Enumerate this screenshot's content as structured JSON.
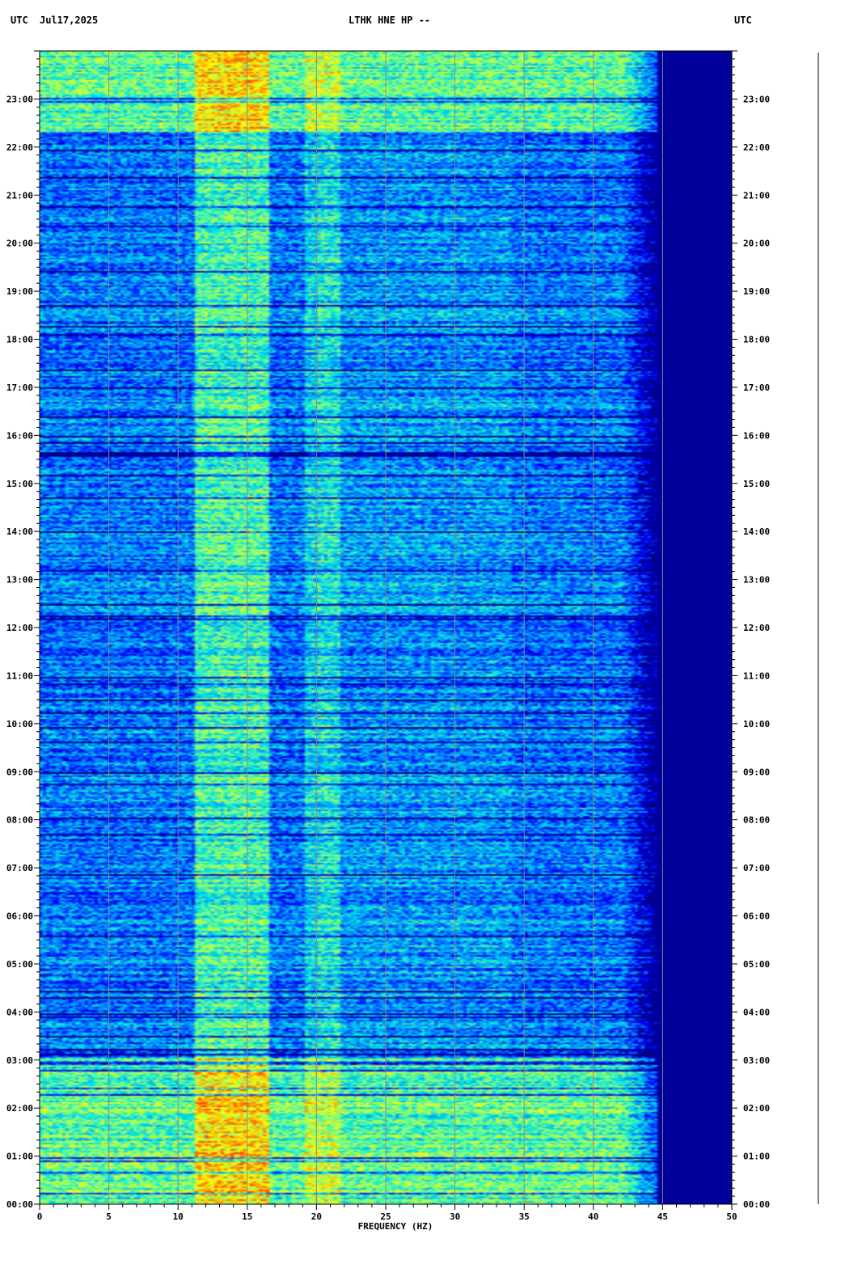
{
  "header": {
    "left_tz": "UTC",
    "date": "Jul17,2025",
    "station": "LTHK HNE HP --",
    "right_tz": "UTC"
  },
  "chart_data": {
    "type": "heatmap",
    "title": "LTHK HNE HP --",
    "date": "Jul17,2025",
    "xlabel": "FREQUENCY (HZ)",
    "ylabel_left": "UTC",
    "ylabel_right": "UTC",
    "xlim": [
      0,
      50
    ],
    "x_ticks": [
      0,
      5,
      10,
      15,
      20,
      25,
      30,
      35,
      40,
      45,
      50
    ],
    "x_tick_labels": [
      "0",
      "5",
      "10",
      "15",
      "20",
      "25",
      "30",
      "35",
      "40",
      "45",
      "50"
    ],
    "ylim_hours": [
      0,
      24
    ],
    "y_ticks": [
      "00:00",
      "01:00",
      "02:00",
      "03:00",
      "04:00",
      "05:00",
      "06:00",
      "07:00",
      "08:00",
      "09:00",
      "10:00",
      "11:00",
      "12:00",
      "13:00",
      "14:00",
      "15:00",
      "16:00",
      "17:00",
      "18:00",
      "19:00",
      "20:00",
      "21:00",
      "22:00",
      "23:00"
    ],
    "colormap": [
      "#00008b",
      "#0000ff",
      "#0080ff",
      "#00e5e5",
      "#80ff80",
      "#ffff00",
      "#ff8000",
      "#ff0000"
    ],
    "energy_bands": [
      {
        "from_hz": 11,
        "to_hz": 16.5,
        "level": "high"
      },
      {
        "from_hz": 19,
        "to_hz": 21.5,
        "level": "medium"
      }
    ],
    "cutoff_hz": 43,
    "high_energy_periods_hours": [
      [
        0,
        3.05
      ],
      [
        22.35,
        24
      ]
    ],
    "grid": true
  }
}
